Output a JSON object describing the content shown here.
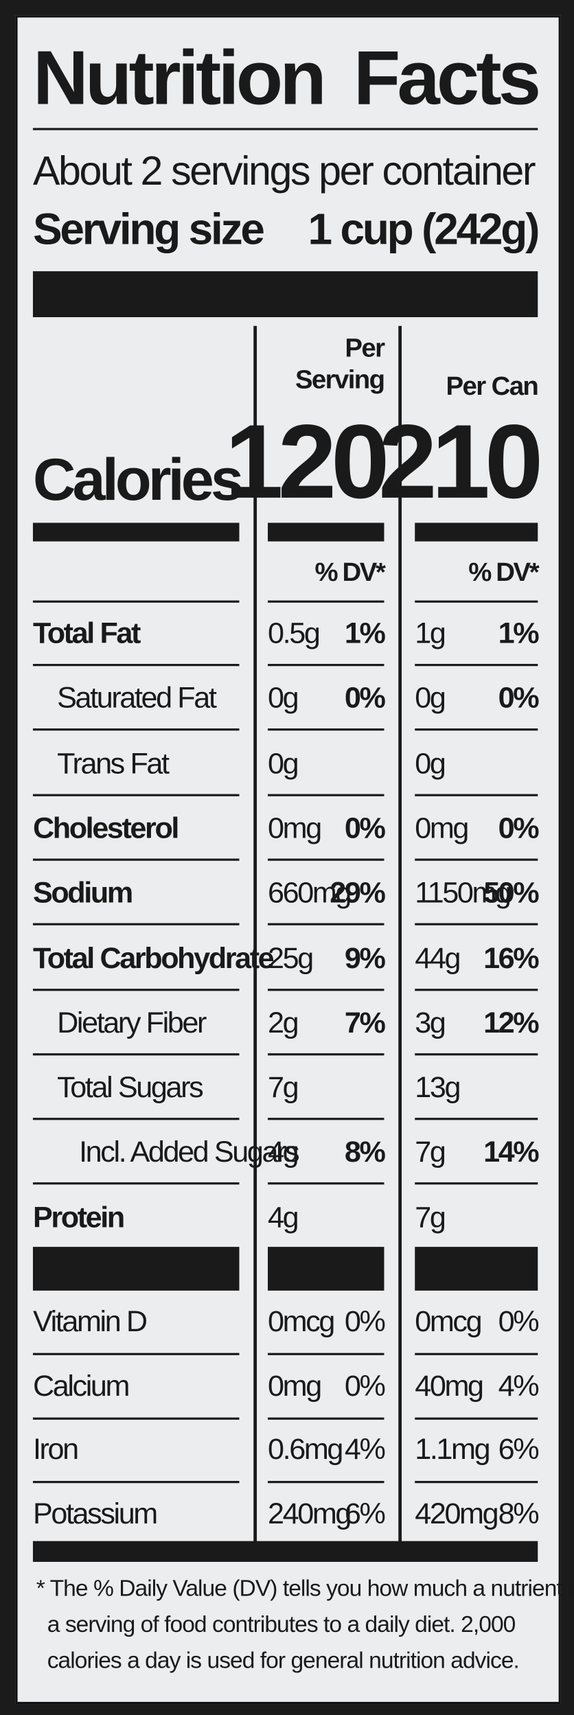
{
  "title": "Nutrition Facts",
  "servings": "About 2 servings per container",
  "serving_size": {
    "label": "Serving size",
    "value": "1 cup (242g)"
  },
  "columns": [
    "Per Serving",
    "Per Can"
  ],
  "calories": {
    "label": "Calories",
    "values": [
      "120",
      "210"
    ]
  },
  "dv_header": [
    "% DV*",
    "% DV*"
  ],
  "nutrients": [
    {
      "name": "Total Fat",
      "level": 0,
      "amounts": [
        "0.5g",
        "1g"
      ],
      "dv": [
        "1%",
        "1%"
      ]
    },
    {
      "name": "Saturated Fat",
      "level": 1,
      "amounts": [
        "0g",
        "0g"
      ],
      "dv": [
        "0%",
        "0%"
      ]
    },
    {
      "name": "Trans Fat",
      "level": 1,
      "amounts": [
        "0g",
        "0g"
      ],
      "dv": [
        null,
        null
      ]
    },
    {
      "name": "Cholesterol",
      "level": 0,
      "amounts": [
        "0mg",
        "0mg"
      ],
      "dv": [
        "0%",
        "0%"
      ]
    },
    {
      "name": "Sodium",
      "level": 0,
      "amounts": [
        "660mg",
        "1150mg"
      ],
      "dv": [
        "29%",
        "50%"
      ]
    },
    {
      "name": "Total Carbohydrate",
      "level": 0,
      "amounts": [
        "25g",
        "44g"
      ],
      "dv": [
        "9%",
        "16%"
      ]
    },
    {
      "name": "Dietary Fiber",
      "level": 1,
      "amounts": [
        "2g",
        "3g"
      ],
      "dv": [
        "7%",
        "12%"
      ]
    },
    {
      "name": "Total Sugars",
      "level": 1,
      "amounts": [
        "7g",
        "13g"
      ],
      "dv": [
        null,
        null
      ]
    },
    {
      "name": "Incl. Added Sugars",
      "level": 2,
      "amounts": [
        "4g",
        "7g"
      ],
      "dv": [
        "8%",
        "14%"
      ]
    },
    {
      "name": "Protein",
      "level": 0,
      "amounts": [
        "4g",
        "7g"
      ],
      "dv": [
        null,
        null
      ]
    }
  ],
  "vitamins": [
    {
      "name": "Vitamin D",
      "amounts": [
        "0mcg",
        "0mcg"
      ],
      "dv": [
        "0%",
        "0%"
      ]
    },
    {
      "name": "Calcium",
      "amounts": [
        "0mg",
        "40mg"
      ],
      "dv": [
        "0%",
        "4%"
      ]
    },
    {
      "name": "Iron",
      "amounts": [
        "0.6mg",
        "1.1mg"
      ],
      "dv": [
        "4%",
        "6%"
      ]
    },
    {
      "name": "Potassium",
      "amounts": [
        "240mg",
        "420mg"
      ],
      "dv": [
        "6%",
        "8%"
      ]
    }
  ],
  "footnote": [
    "* The % Daily Value (DV) tells you how much a nutrient in",
    "a serving of food contributes to a daily diet. 2,000",
    "calories a day is used for general nutrition advice."
  ]
}
